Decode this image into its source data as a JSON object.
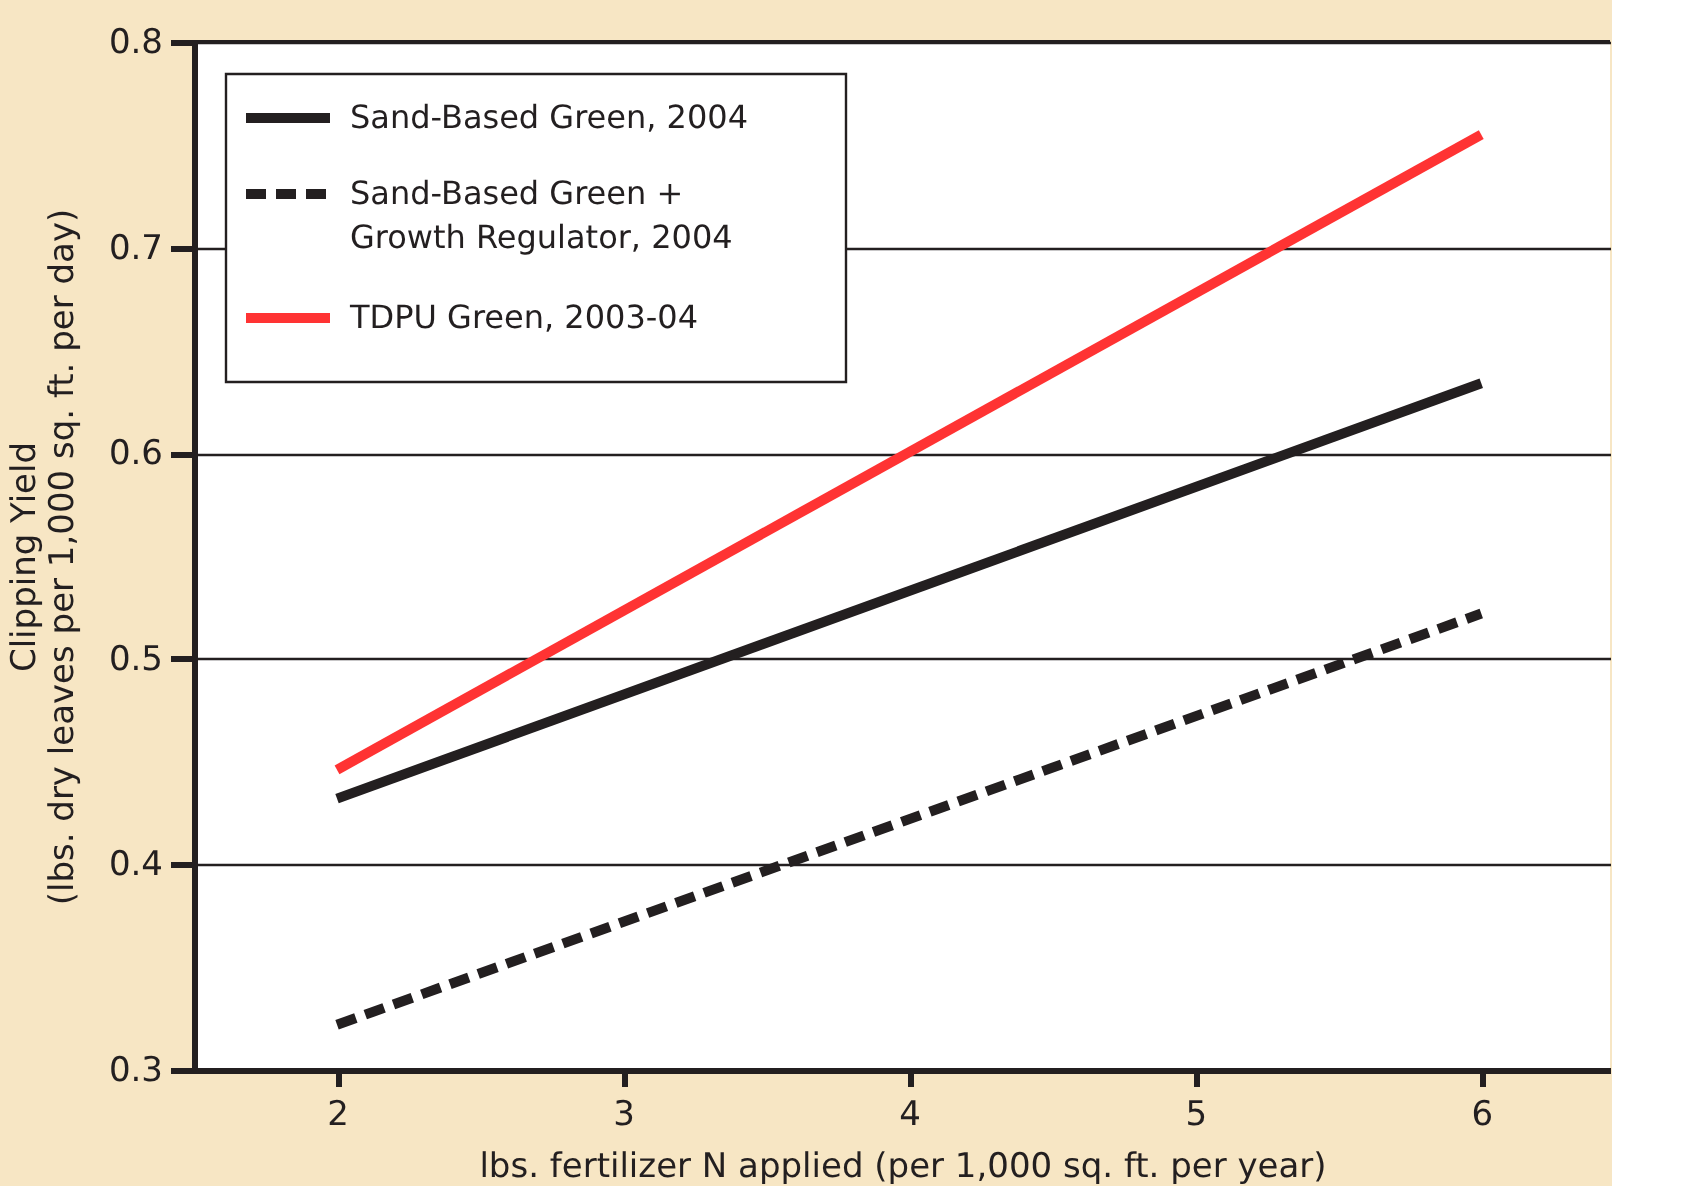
{
  "chart_data": {
    "type": "line",
    "xlabel": "lbs. fertilizer N applied (per 1,000 sq. ft. per year)",
    "ylabel": "Clipping Yield\n(lbs. dry leaves per 1,000 sq. ft. per day)",
    "x": [
      2,
      6
    ],
    "series": [
      {
        "name": "Sand-Based Green, 2004",
        "color": "#231f20",
        "line_style": "solid",
        "values": [
          0.432,
          0.634
        ]
      },
      {
        "name": "Sand-Based Green +\nGrowth Regulator, 2004",
        "color": "#231f20",
        "line_style": "dashed",
        "values": [
          0.322,
          0.522
        ]
      },
      {
        "name": "TDPU Green, 2003-04",
        "color": "#ff3333",
        "line_style": "solid",
        "values": [
          0.446,
          0.755
        ]
      }
    ],
    "xlim": [
      1.5,
      6.45
    ],
    "xticks": [
      2,
      3,
      4,
      5,
      6
    ],
    "ylim": [
      0.3,
      0.8
    ],
    "yticks": [
      0.3,
      0.4,
      0.5,
      0.6,
      0.7,
      0.8
    ],
    "grid": "y",
    "legend": "top left",
    "marker": "none"
  }
}
